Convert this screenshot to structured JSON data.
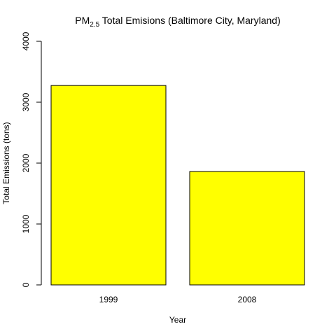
{
  "chart_data": {
    "type": "bar",
    "title": "PM2.5 Total Emisions (Baltimore City, Maryland)",
    "title_parts": {
      "main": "PM",
      "subscript": "2.5",
      "rest": " Total Emisions (Baltimore City, Maryland)"
    },
    "xlabel": "Year",
    "ylabel": "Total Emissions (tons)",
    "categories": [
      "1999",
      "2008"
    ],
    "values": [
      3274,
      1862
    ],
    "ylim": [
      0,
      4000
    ],
    "yticks": [
      0,
      1000,
      2000,
      3000,
      4000
    ],
    "ytick_labels": [
      "0",
      "1000",
      "2000",
      "3000",
      "4000"
    ],
    "bar_color": "#ffff00",
    "bar_border_color": "#000000",
    "grid": false,
    "legend": "none"
  }
}
